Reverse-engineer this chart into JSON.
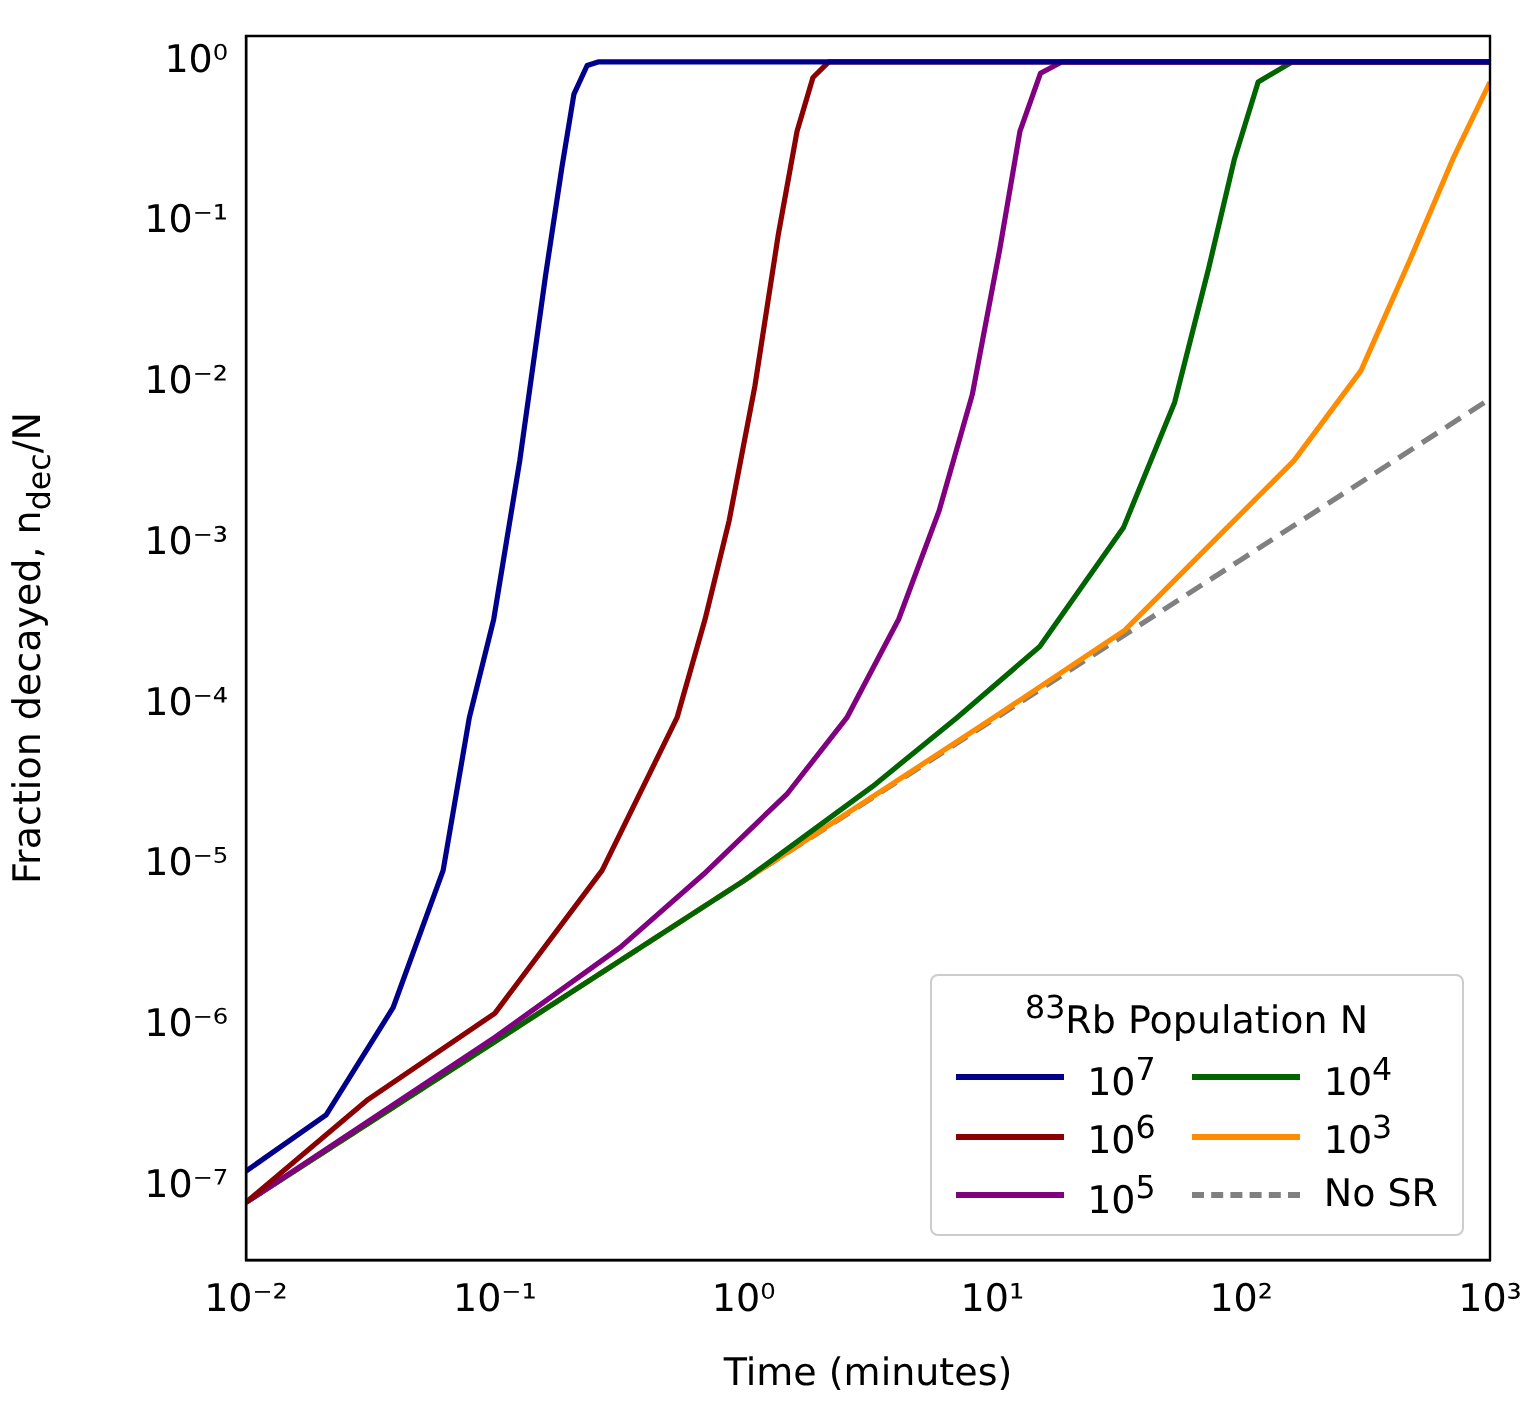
{
  "chart_data": {
    "type": "line",
    "xlabel": "Time (minutes)",
    "ylabel": "Fraction decayed, n$_{dec}$/N",
    "legend_title": "$^{83}$Rb Population N",
    "log": "xy",
    "grid": false,
    "legend": "bottom right",
    "marker": "none",
    "line_style": "solid",
    "xlim": [
      0.01,
      1000
    ],
    "ylim": [
      3.5e-08,
      1.45
    ],
    "xticks": [
      {
        "value": 0.01,
        "label": "10⁻²"
      },
      {
        "value": 0.1,
        "label": "10⁻¹"
      },
      {
        "value": 1,
        "label": "10⁰"
      },
      {
        "value": 10,
        "label": "10¹"
      },
      {
        "value": 100,
        "label": "10²"
      },
      {
        "value": 1000,
        "label": "10³"
      }
    ],
    "yticks": [
      {
        "value": 1e-07,
        "label": "10⁻⁷"
      },
      {
        "value": 1e-06,
        "label": "10⁻⁶"
      },
      {
        "value": 1e-05,
        "label": "10⁻⁵"
      },
      {
        "value": 0.0001,
        "label": "10⁻⁴"
      },
      {
        "value": 0.001,
        "label": "10⁻³"
      },
      {
        "value": 0.01,
        "label": "10⁻²"
      },
      {
        "value": 0.1,
        "label": "10⁻¹"
      },
      {
        "value": 1,
        "label": "10⁰"
      }
    ],
    "series": [
      {
        "name": "10$^{7}$",
        "color": "#00008b",
        "x": [
          0.01,
          0.021,
          0.039,
          0.062,
          0.079,
          0.099,
          0.126,
          0.16,
          0.186,
          0.208,
          0.235,
          0.26,
          1000
        ],
        "values": [
          1.25e-07,
          2.8e-07,
          1.3e-06,
          9.3e-06,
          8.3e-05,
          0.00034,
          0.0033,
          0.047,
          0.22,
          0.63,
          0.95,
          1,
          1
        ]
      },
      {
        "name": "10$^{6}$",
        "color": "#8b0000",
        "x": [
          0.01,
          0.031,
          0.1,
          0.27,
          0.54,
          0.7,
          0.875,
          1.11,
          1.38,
          1.64,
          1.9,
          2.2,
          1000
        ],
        "values": [
          8e-08,
          3.5e-07,
          1.2e-06,
          9.3e-06,
          8.3e-05,
          0.00034,
          0.0014,
          0.0096,
          0.085,
          0.37,
          0.8,
          1,
          1
        ]
      },
      {
        "name": "10$^{5}$",
        "color": "#800080",
        "x": [
          0.01,
          0.1,
          0.32,
          0.69,
          1.5,
          2.6,
          4.2,
          6.1,
          8.3,
          10.7,
          12.9,
          15.6,
          19,
          1000
        ],
        "values": [
          8e-08,
          8.5e-07,
          3.1e-06,
          8.8e-06,
          2.8e-05,
          8.3e-05,
          0.00034,
          0.0016,
          0.0085,
          0.068,
          0.37,
          0.85,
          1,
          1
        ]
      },
      {
        "name": "10$^{4}$",
        "color": "#006400",
        "x": [
          0.01,
          1,
          3.3,
          7.2,
          15.5,
          33.6,
          54,
          74,
          94,
          117,
          160,
          1000
        ],
        "values": [
          8e-08,
          8e-06,
          3.1e-05,
          8.3e-05,
          0.00023,
          0.00126,
          0.0076,
          0.052,
          0.25,
          0.75,
          1,
          1
        ]
      },
      {
        "name": "10$^{3}$",
        "color": "#ff8c00",
        "x": [
          0.01,
          1,
          10,
          34,
          74,
          163,
          303,
          480,
          710,
          1000
        ],
        "values": [
          8e-08,
          8e-06,
          8.2e-05,
          0.00029,
          0.00097,
          0.0033,
          0.012,
          0.06,
          0.25,
          0.75
        ]
      },
      {
        "name": "No SR",
        "color": "#808080",
        "line_style": "dashed",
        "x": [
          0.01,
          0.1,
          1,
          10,
          100,
          1000
        ],
        "values": [
          8e-08,
          8e-07,
          8e-06,
          8e-05,
          0.0008,
          0.008
        ]
      }
    ]
  }
}
